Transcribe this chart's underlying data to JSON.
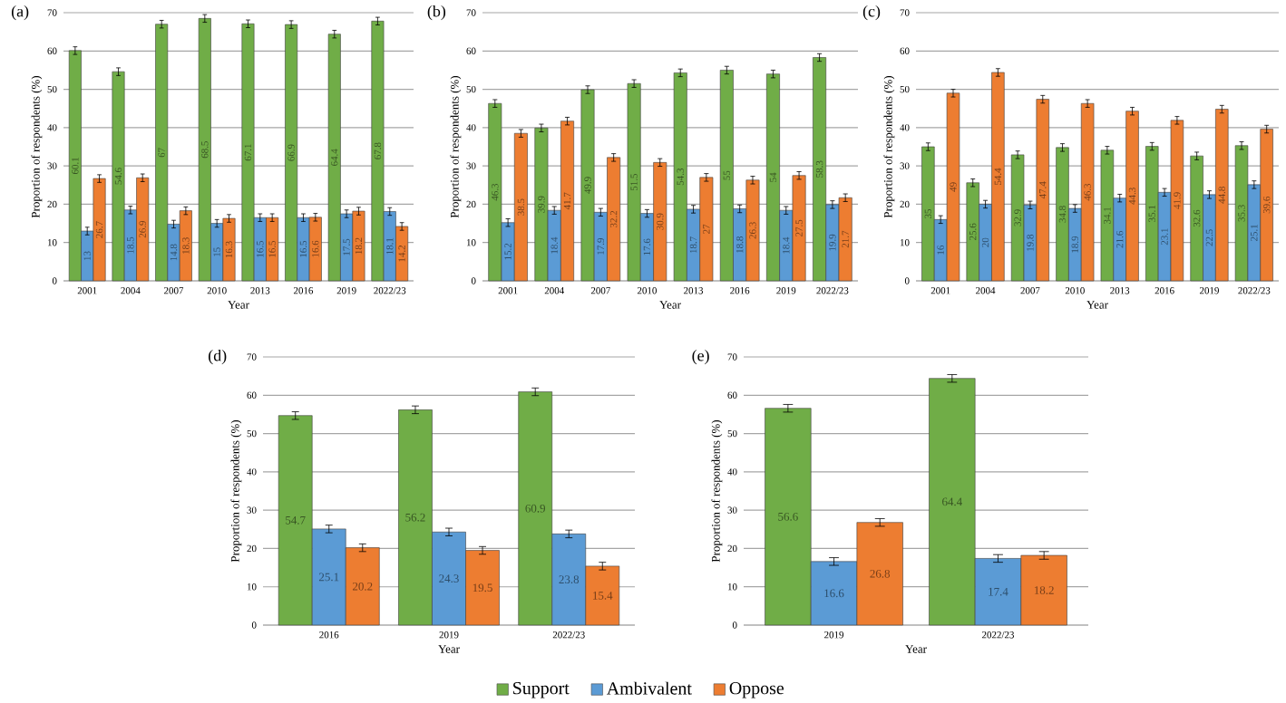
{
  "chart_data": [
    {
      "type": "bar",
      "title": "(a)",
      "xlabel": "Year",
      "ylabel": "Proportion of respondents (%)",
      "categories": [
        "2001",
        "2004",
        "2007",
        "2010",
        "2013",
        "2016",
        "2019",
        "2022/23"
      ],
      "ylim": [
        0,
        70
      ],
      "yticks": [
        0,
        10,
        20,
        30,
        40,
        50,
        60,
        70
      ],
      "grid": "y",
      "data_labels": true,
      "series": [
        {
          "color": "#70ad47",
          "values": [
            60.1,
            54.6,
            67,
            68.5,
            67.1,
            66.9,
            64.4,
            67.8
          ],
          "errors": [
            1,
            1,
            1,
            1,
            1,
            1,
            1,
            1
          ]
        },
        {
          "color": "#5b9bd5",
          "values": [
            13,
            18.5,
            14.8,
            15,
            16.5,
            16.5,
            17.5,
            18.1
          ],
          "errors": [
            1,
            1,
            1,
            1,
            1,
            1,
            1,
            1
          ]
        },
        {
          "color": "#ed7d31",
          "values": [
            26.7,
            26.9,
            18.3,
            16.3,
            16.5,
            16.6,
            18.2,
            14.2
          ],
          "errors": [
            1,
            1,
            1,
            1,
            1,
            1,
            1,
            1
          ]
        }
      ]
    },
    {
      "type": "bar",
      "title": "(b)",
      "xlabel": "Year",
      "ylabel": "Proportion of respondents (%)",
      "categories": [
        "2001",
        "2004",
        "2007",
        "2010",
        "2013",
        "2016",
        "2019",
        "2022/23"
      ],
      "ylim": [
        0,
        70
      ],
      "yticks": [
        0,
        10,
        20,
        30,
        40,
        50,
        60,
        70
      ],
      "grid": "y",
      "data_labels": true,
      "series": [
        {
          "color": "#70ad47",
          "values": [
            46.3,
            39.9,
            49.9,
            51.5,
            54.3,
            55,
            54,
            58.3
          ],
          "errors": [
            1,
            1,
            1,
            1,
            1,
            1,
            1,
            1
          ]
        },
        {
          "color": "#5b9bd5",
          "values": [
            15.2,
            18.4,
            17.9,
            17.6,
            18.7,
            18.8,
            18.4,
            19.9
          ],
          "errors": [
            1,
            1,
            1,
            1,
            1,
            1,
            1,
            1
          ]
        },
        {
          "color": "#ed7d31",
          "values": [
            38.5,
            41.7,
            32.2,
            30.9,
            27,
            26.3,
            27.5,
            21.7
          ],
          "errors": [
            1,
            1,
            1,
            1,
            1,
            1,
            1,
            1
          ]
        }
      ]
    },
    {
      "type": "bar",
      "title": "(c)",
      "xlabel": "Year",
      "ylabel": "Proportion of respondents (%)",
      "categories": [
        "2001",
        "2004",
        "2007",
        "2010",
        "2013",
        "2016",
        "2019",
        "2022/23"
      ],
      "ylim": [
        0,
        70
      ],
      "yticks": [
        0,
        10,
        20,
        30,
        40,
        50,
        60,
        70
      ],
      "grid": "y",
      "data_labels": true,
      "series": [
        {
          "color": "#70ad47",
          "values": [
            35,
            25.6,
            32.9,
            34.8,
            34.1,
            35.1,
            32.6,
            35.3
          ],
          "errors": [
            1,
            1,
            1,
            1,
            1,
            1,
            1,
            1
          ]
        },
        {
          "color": "#5b9bd5",
          "values": [
            16,
            20,
            19.8,
            18.9,
            21.6,
            23.1,
            22.5,
            25.1
          ],
          "errors": [
            1,
            1,
            1,
            1,
            1,
            1,
            1,
            1
          ]
        },
        {
          "color": "#ed7d31",
          "values": [
            49,
            54.4,
            47.4,
            46.3,
            44.3,
            41.9,
            44.8,
            39.6
          ],
          "errors": [
            1,
            1,
            1,
            1,
            1,
            1,
            1,
            1
          ]
        }
      ]
    },
    {
      "type": "bar",
      "title": "(d)",
      "xlabel": "Year",
      "ylabel": "Proportion of respondents (%)",
      "categories": [
        "2016",
        "2019",
        "2022/23"
      ],
      "ylim": [
        0,
        70
      ],
      "yticks": [
        0,
        10,
        20,
        30,
        40,
        50,
        60,
        70
      ],
      "grid": "y",
      "data_labels": true,
      "legend": "bottom",
      "series": [
        {
          "name": "Support",
          "color": "#70ad47",
          "values": [
            54.7,
            56.2,
            60.9
          ],
          "errors": [
            1,
            1,
            1
          ]
        },
        {
          "name": "Ambivalent",
          "color": "#5b9bd5",
          "values": [
            25.1,
            24.3,
            23.8
          ],
          "errors": [
            1,
            1,
            1
          ]
        },
        {
          "name": "Oppose",
          "color": "#ed7d31",
          "values": [
            20.2,
            19.5,
            15.4
          ],
          "errors": [
            1,
            1,
            1
          ]
        }
      ]
    },
    {
      "type": "bar",
      "title": "(e)",
      "xlabel": "Year",
      "ylabel": "Proportion of respondents (%)",
      "categories": [
        "2019",
        "2022/23"
      ],
      "ylim": [
        0,
        70
      ],
      "yticks": [
        0,
        10,
        20,
        30,
        40,
        50,
        60,
        70
      ],
      "grid": "y",
      "data_labels": true,
      "series": [
        {
          "color": "#70ad47",
          "values": [
            56.6,
            64.4
          ],
          "errors": [
            1,
            1
          ]
        },
        {
          "color": "#5b9bd5",
          "values": [
            16.6,
            17.4
          ],
          "errors": [
            1,
            1
          ]
        },
        {
          "color": "#ed7d31",
          "values": [
            26.8,
            18.2
          ],
          "errors": [
            1,
            1
          ]
        }
      ]
    }
  ]
}
